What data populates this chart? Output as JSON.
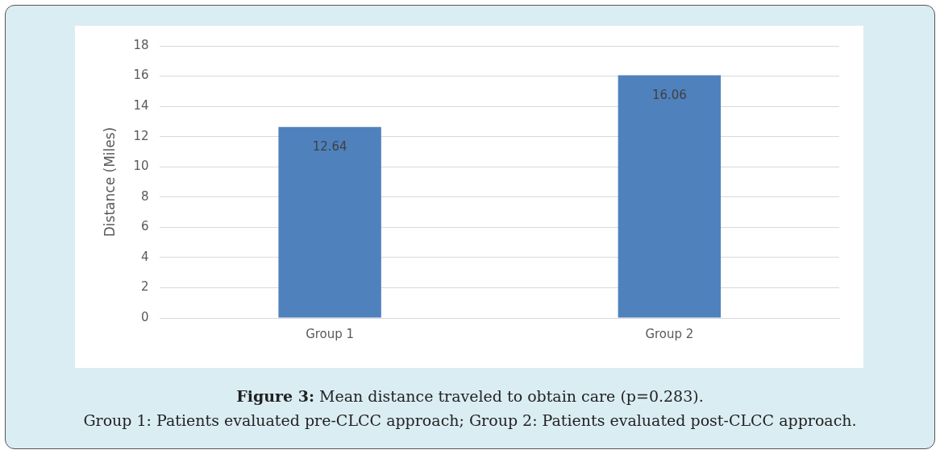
{
  "chart_data": {
    "type": "bar",
    "ylabel": "Distance (Miles)",
    "categories": [
      "Group 1",
      "Group 2"
    ],
    "values": [
      12.64,
      16.06
    ],
    "color": "#4f81bd",
    "ylim": [
      0,
      18
    ],
    "yticks": [
      0,
      2,
      4,
      6,
      8,
      10,
      12,
      14,
      16,
      18
    ],
    "grid": "y",
    "data_labels": true,
    "legend": false,
    "annotations": [
      "Figure 3: Mean distance traveled to obtain care (p=0.283).",
      "Group 1: Patients evaluated pre-CLCC approach; Group 2: Patients evaluated post-CLCC approach."
    ]
  }
}
